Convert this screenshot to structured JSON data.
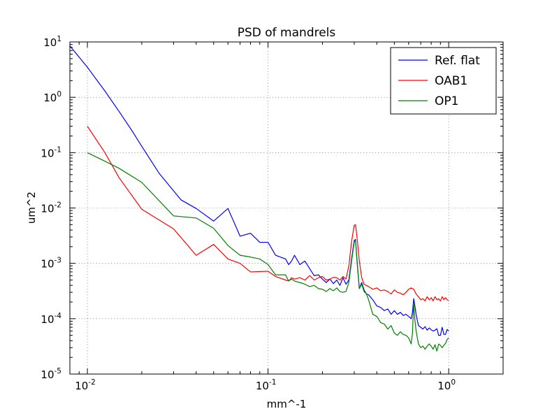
{
  "chart_data": {
    "type": "line",
    "title": "PSD of mandrels",
    "xlabel": "mm^-1",
    "ylabel": "um^2",
    "xscale": "log",
    "yscale": "log",
    "xlim": [
      0.008,
      2.0
    ],
    "ylim": [
      1e-05,
      10
    ],
    "grid": true,
    "legend_position": "top-right",
    "x_ticks": [
      {
        "base": "10",
        "exp": "-2",
        "value": 0.01
      },
      {
        "base": "10",
        "exp": "-1",
        "value": 0.1
      },
      {
        "base": "10",
        "exp": "0",
        "value": 1
      }
    ],
    "y_ticks": [
      {
        "base": "10",
        "exp": "-5",
        "value": 1e-05
      },
      {
        "base": "10",
        "exp": "-4",
        "value": 0.0001
      },
      {
        "base": "10",
        "exp": "-3",
        "value": 0.001
      },
      {
        "base": "10",
        "exp": "-2",
        "value": 0.01
      },
      {
        "base": "10",
        "exp": "-1",
        "value": 0.1
      },
      {
        "base": "10",
        "exp": "0",
        "value": 1
      },
      {
        "base": "10",
        "exp": "1",
        "value": 10
      }
    ],
    "series": [
      {
        "name": "Ref. flat",
        "color": "#0000ff",
        "x": [
          0.008,
          0.01,
          0.0125,
          0.015,
          0.0175,
          0.02,
          0.025,
          0.033,
          0.04,
          0.05,
          0.06,
          0.07,
          0.08,
          0.09,
          0.1,
          0.11,
          0.125,
          0.13,
          0.135,
          0.14,
          0.15,
          0.16,
          0.17,
          0.18,
          0.19,
          0.2,
          0.21,
          0.22,
          0.23,
          0.24,
          0.25,
          0.26,
          0.27,
          0.28,
          0.29,
          0.3,
          0.305,
          0.31,
          0.32,
          0.33,
          0.34,
          0.35,
          0.36,
          0.38,
          0.4,
          0.42,
          0.44,
          0.46,
          0.48,
          0.5,
          0.52,
          0.54,
          0.56,
          0.58,
          0.6,
          0.62,
          0.63,
          0.64,
          0.65,
          0.66,
          0.68,
          0.7,
          0.72,
          0.74,
          0.76,
          0.78,
          0.8,
          0.82,
          0.84,
          0.86,
          0.88,
          0.9,
          0.92,
          0.94,
          0.96,
          0.98,
          1.0
        ],
        "y": [
          8.5,
          3.5,
          1.3,
          0.55,
          0.26,
          0.13,
          0.042,
          0.014,
          0.0098,
          0.0058,
          0.0098,
          0.0031,
          0.0035,
          0.0024,
          0.0024,
          0.0014,
          0.0012,
          0.00095,
          0.0011,
          0.0014,
          0.00095,
          0.0011,
          0.0008,
          0.0006,
          0.00062,
          0.00052,
          0.00045,
          0.00052,
          0.00043,
          0.0005,
          0.0004,
          0.00055,
          0.00042,
          0.0005,
          0.0012,
          0.0026,
          0.0027,
          0.0012,
          0.00035,
          0.00045,
          0.00033,
          0.00028,
          0.00027,
          0.00022,
          0.00017,
          0.00016,
          0.00014,
          0.00015,
          0.00012,
          0.00014,
          0.00012,
          0.00013,
          0.000115,
          0.00012,
          0.00011,
          0.0001,
          0.00013,
          0.00023,
          0.00017,
          0.00012,
          7.5e-05,
          7e-05,
          6.5e-05,
          7.2e-05,
          6.2e-05,
          6.8e-05,
          6.3e-05,
          6e-05,
          6.2e-05,
          6.6e-05,
          5e-05,
          5e-05,
          7e-05,
          5.2e-05,
          5.2e-05,
          6.4e-05,
          6e-05
        ]
      },
      {
        "name": "OAB1",
        "color": "#ff0000",
        "x": [
          0.01,
          0.0125,
          0.015,
          0.02,
          0.03,
          0.04,
          0.05,
          0.06,
          0.07,
          0.08,
          0.1,
          0.11,
          0.125,
          0.13,
          0.135,
          0.14,
          0.15,
          0.16,
          0.17,
          0.18,
          0.19,
          0.2,
          0.21,
          0.22,
          0.23,
          0.24,
          0.25,
          0.26,
          0.27,
          0.28,
          0.29,
          0.3,
          0.305,
          0.31,
          0.32,
          0.33,
          0.34,
          0.35,
          0.36,
          0.38,
          0.4,
          0.42,
          0.44,
          0.46,
          0.48,
          0.5,
          0.52,
          0.54,
          0.56,
          0.58,
          0.6,
          0.62,
          0.64,
          0.66,
          0.68,
          0.7,
          0.72,
          0.74,
          0.76,
          0.78,
          0.8,
          0.82,
          0.84,
          0.86,
          0.88,
          0.9,
          0.92,
          0.94,
          0.96,
          0.98,
          1.0
        ],
        "y": [
          0.3,
          0.1,
          0.035,
          0.0095,
          0.0042,
          0.0014,
          0.0022,
          0.0012,
          0.001,
          0.0007,
          0.00072,
          0.00058,
          0.0005,
          0.00048,
          0.00055,
          0.00052,
          0.00055,
          0.0005,
          0.0006,
          0.0005,
          0.00055,
          0.00058,
          0.0005,
          0.00052,
          0.00056,
          0.00055,
          0.0005,
          0.00058,
          0.00052,
          0.0009,
          0.0025,
          0.0049,
          0.005,
          0.0032,
          0.0011,
          0.00055,
          0.00042,
          0.0004,
          0.00038,
          0.00034,
          0.00036,
          0.00032,
          0.00033,
          0.00031,
          0.00028,
          0.00033,
          0.0003,
          0.00029,
          0.00027,
          0.0003,
          0.00034,
          0.00036,
          0.00034,
          0.00028,
          0.00025,
          0.00022,
          0.00023,
          0.00021,
          0.00025,
          0.00022,
          0.00024,
          0.00021,
          0.00025,
          0.00022,
          0.00023,
          0.00021,
          0.00025,
          0.00022,
          0.00024,
          0.00022,
          0.00021
        ]
      },
      {
        "name": "OP1",
        "color": "#008000",
        "x": [
          0.01,
          0.0125,
          0.015,
          0.02,
          0.03,
          0.04,
          0.05,
          0.06,
          0.07,
          0.08,
          0.09,
          0.1,
          0.11,
          0.125,
          0.13,
          0.135,
          0.14,
          0.15,
          0.16,
          0.17,
          0.18,
          0.19,
          0.2,
          0.21,
          0.22,
          0.23,
          0.24,
          0.25,
          0.26,
          0.27,
          0.28,
          0.29,
          0.3,
          0.305,
          0.31,
          0.32,
          0.33,
          0.34,
          0.35,
          0.36,
          0.38,
          0.4,
          0.42,
          0.44,
          0.46,
          0.48,
          0.5,
          0.52,
          0.54,
          0.56,
          0.58,
          0.6,
          0.62,
          0.63,
          0.64,
          0.65,
          0.66,
          0.68,
          0.7,
          0.72,
          0.74,
          0.76,
          0.78,
          0.8,
          0.82,
          0.84,
          0.86,
          0.88,
          0.9,
          0.92,
          0.94,
          0.96,
          0.98,
          1.0
        ],
        "y": [
          0.1,
          0.07,
          0.052,
          0.029,
          0.0072,
          0.0066,
          0.0043,
          0.0021,
          0.0014,
          0.0013,
          0.0012,
          0.00095,
          0.00062,
          0.00062,
          0.00048,
          0.00052,
          0.00048,
          0.00045,
          0.00042,
          0.00038,
          0.0004,
          0.00035,
          0.00034,
          0.00031,
          0.00035,
          0.00032,
          0.00036,
          0.00031,
          0.0003,
          0.00031,
          0.00045,
          0.0011,
          0.0024,
          0.0026,
          0.0013,
          0.00035,
          0.00042,
          0.00031,
          0.00028,
          0.00022,
          0.00012,
          0.00011,
          8.5e-05,
          8e-05,
          6.5e-05,
          7.5e-05,
          5.5e-05,
          5e-05,
          5.8e-05,
          5.2e-05,
          5e-05,
          4.5e-05,
          3.5e-05,
          5.5e-05,
          0.00019,
          9.5e-05,
          6e-05,
          3.5e-05,
          3e-05,
          3.2e-05,
          2.8e-05,
          3.2e-05,
          3.5e-05,
          3.2e-05,
          2.8e-05,
          3.4e-05,
          2.6e-05,
          3.5e-05,
          3.3e-05,
          3e-05,
          3.3e-05,
          3.6e-05,
          4.2e-05,
          4.5e-05
        ]
      }
    ]
  }
}
